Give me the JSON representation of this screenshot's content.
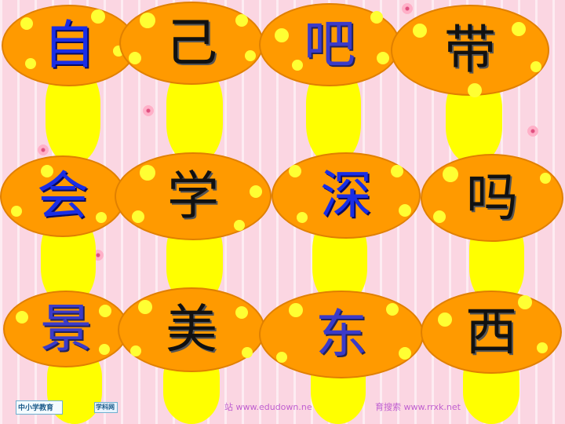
{
  "slide": {
    "characters": [
      {
        "char": "自",
        "color": "blue"
      },
      {
        "char": "己",
        "color": "black"
      },
      {
        "char": "吧",
        "color": "purple"
      },
      {
        "char": "带",
        "color": "black"
      },
      {
        "char": "会",
        "color": "blue"
      },
      {
        "char": "学",
        "color": "black"
      },
      {
        "char": "深",
        "color": "blue"
      },
      {
        "char": "吗",
        "color": "black"
      },
      {
        "char": "景",
        "color": "purple"
      },
      {
        "char": "美",
        "color": "black"
      },
      {
        "char": "东",
        "color": "purple"
      },
      {
        "char": "西",
        "color": "black"
      }
    ]
  },
  "footer": {
    "logo_left": "中小学教育",
    "logo_right": "学科网",
    "site_1": "站 www.edudown.ne",
    "site_2": "育搜索  www.rrxk.net"
  },
  "colors": {
    "cap": "#ff9a00",
    "stem": "#ffff00",
    "dot": "#ffff33",
    "background": "#fbd6e2"
  }
}
